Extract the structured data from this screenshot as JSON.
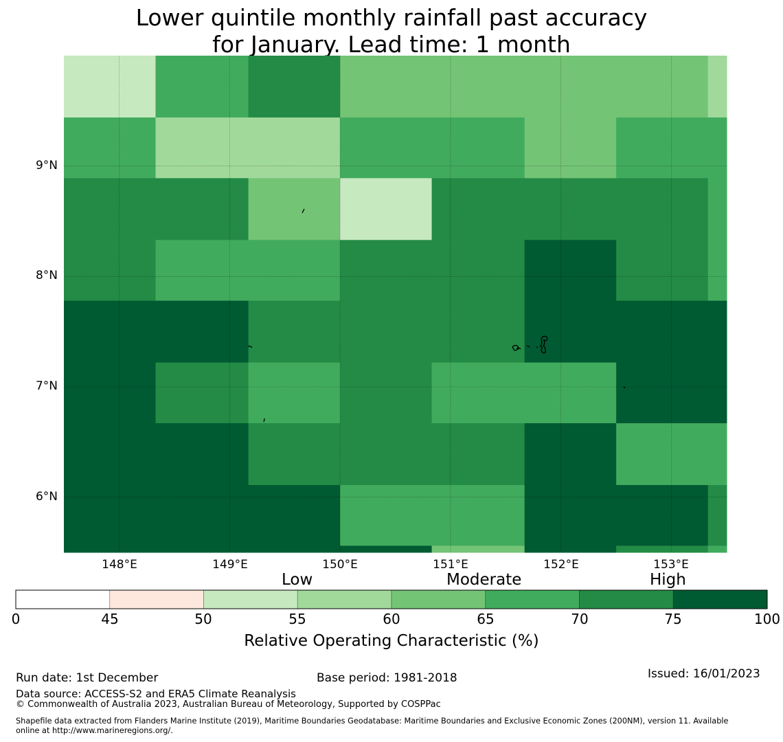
{
  "title": {
    "line1": "Lower quintile monthly rainfall past accuracy",
    "line2": "for January. Lead time: 1 month"
  },
  "map": {
    "lon_ticks": [
      "148°E",
      "149°E",
      "150°E",
      "151°E",
      "152°E",
      "153°E"
    ],
    "lat_ticks": [
      "9°N",
      "8°N",
      "7°N",
      "6°N"
    ],
    "lon_range": [
      147.5,
      153.5
    ],
    "lat_range": [
      5.5,
      10.0
    ],
    "grid_lon_edges": [
      147.5,
      148.33,
      149.17,
      150.0,
      150.83,
      151.67,
      152.5,
      153.33,
      153.5
    ],
    "grid_lat_edges": [
      10.0,
      9.44,
      8.89,
      8.33,
      7.78,
      7.22,
      6.67,
      6.11,
      5.56,
      5.5
    ],
    "cells": [
      [
        55,
        70,
        75,
        65,
        65,
        65,
        65,
        60
      ],
      [
        70,
        60,
        60,
        70,
        70,
        65,
        70,
        70
      ],
      [
        75,
        75,
        65,
        55,
        75,
        75,
        75,
        70
      ],
      [
        75,
        70,
        70,
        75,
        75,
        100,
        75,
        70
      ],
      [
        100,
        100,
        75,
        75,
        75,
        100,
        100,
        100
      ],
      [
        100,
        75,
        70,
        75,
        70,
        70,
        100,
        100
      ],
      [
        100,
        100,
        75,
        75,
        75,
        100,
        70,
        70
      ],
      [
        100,
        100,
        100,
        70,
        70,
        100,
        100,
        75
      ],
      [
        100,
        100,
        100,
        100,
        65,
        100,
        75,
        70
      ]
    ]
  },
  "colorbar": {
    "category_labels": [
      "Low",
      "Moderate",
      "High"
    ],
    "bounds": [
      0,
      45,
      50,
      55,
      60,
      65,
      70,
      75,
      100
    ],
    "tick_labels": [
      "0",
      "45",
      "50",
      "55",
      "60",
      "65",
      "70",
      "75",
      "100"
    ],
    "colors": [
      "#ffffff",
      "#fee8dd",
      "#c7e9c0",
      "#a1d99b",
      "#74c476",
      "#41ab5d",
      "#238b45",
      "#005a32"
    ],
    "label": "Relative Operating Characteristic (%)"
  },
  "footer": {
    "run_date": "Run date: 1st December",
    "base_period": "Base period: 1981-2018",
    "issued": "Issued: 16/01/2023",
    "data_source": "Data source: ACCESS-S2 and ERA5 Climate Reanalysis",
    "copyright": "© Commonwealth of Australia 2023, Australian Bureau of Meteorology, Supported by COSPPac",
    "shapefile_line1": "Shapefile data extracted from Flanders Marine Institute (2019), Maritime Boundaries Geodatabase: Maritime Boundaries and Exclusive Economic Zones (200NM), version 11. Available",
    "shapefile_line2": "online at http://www.marineregions.org/."
  }
}
